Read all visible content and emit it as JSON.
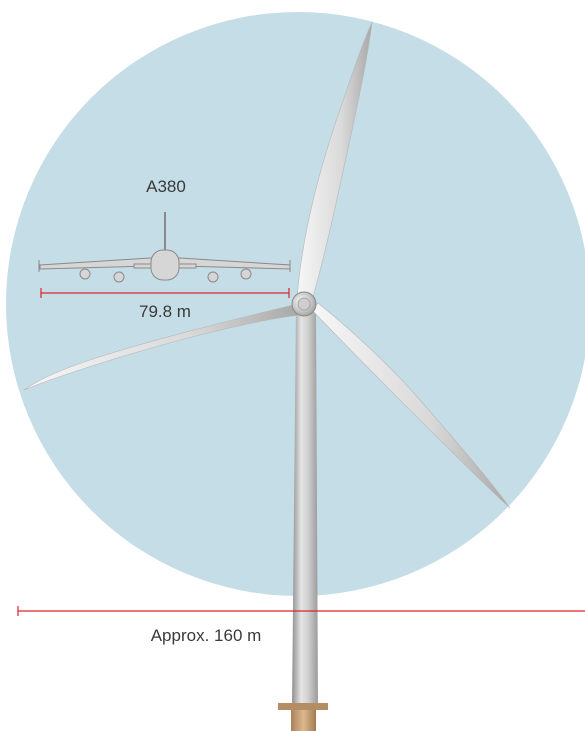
{
  "colors": {
    "rotor_area": "#c4dde6",
    "measure_line": "#d9262b",
    "tower": "#c9c9c9",
    "blade": "#e8e8e8",
    "foundation": "#c8a37c",
    "aircraft": "#d0d0d0"
  },
  "labels": {
    "aircraft_name": "A380",
    "aircraft_span": "79.8 m",
    "rotor_diameter": "Approx. 160 m"
  }
}
